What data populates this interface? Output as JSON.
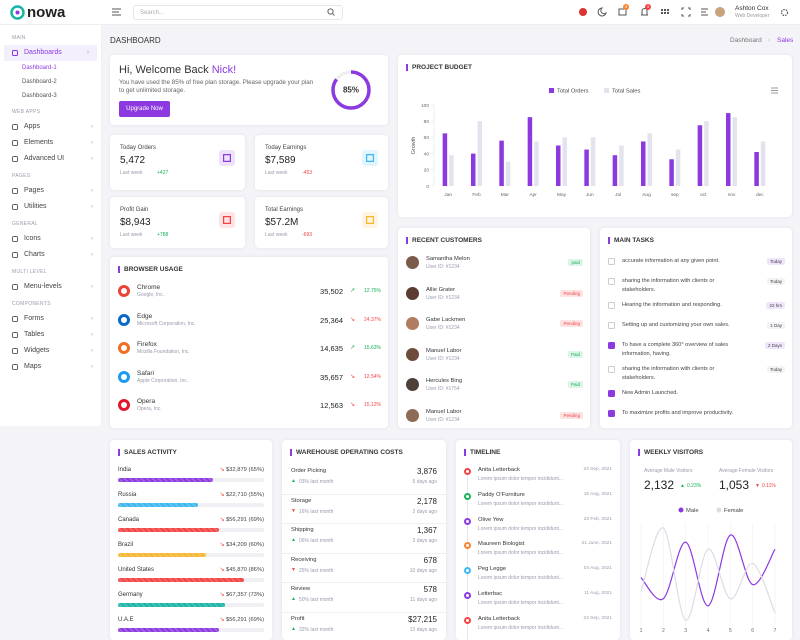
{
  "header": {
    "logo": "nowa",
    "search_placeholder": "Search...",
    "cart_badge": "5",
    "notification_badge": "3",
    "user_name": "Ashton Cox",
    "user_role": "Web Developer"
  },
  "sidebar": {
    "sections": [
      {
        "title": "MAIN",
        "items": [
          {
            "label": "Dashboards",
            "children": [
              "Dashboard-1",
              "Dashboard-2",
              "Dashboard-3"
            ]
          }
        ]
      },
      {
        "title": "WEB APPS",
        "items": [
          {
            "label": "Apps"
          },
          {
            "label": "Elements"
          },
          {
            "label": "Advanced UI"
          }
        ]
      },
      {
        "title": "PAGES",
        "items": [
          {
            "label": "Pages"
          },
          {
            "label": "Utilities"
          }
        ]
      },
      {
        "title": "GENERAL",
        "items": [
          {
            "label": "Icons"
          },
          {
            "label": "Charts"
          }
        ]
      },
      {
        "title": "MULTI LEVEL",
        "items": [
          {
            "label": "Menu-levels"
          }
        ]
      },
      {
        "title": "COMPONENTS",
        "items": [
          {
            "label": "Forms"
          },
          {
            "label": "Tables"
          },
          {
            "label": "Widgets"
          },
          {
            "label": "Maps"
          }
        ]
      }
    ]
  },
  "page": {
    "title": "DASHBOARD",
    "breadcrumb": [
      "Dashboard",
      "Sales"
    ]
  },
  "welcome": {
    "greeting": "Hi, Welcome Back ",
    "name": "Nick!",
    "text": "You have used the 85% of free plan storage. Please upgrade your plan to get unlimited storage.",
    "button": "Upgrade Now",
    "progress": {
      "value": 85,
      "label": "85%"
    }
  },
  "stats": [
    {
      "title": "Today Orders",
      "value": "5,472",
      "period": "Last week",
      "change": "+427",
      "trend": "up",
      "color": "#8c3ae0"
    },
    {
      "title": "Today Earnings",
      "value": "$7,589",
      "period": "Last week",
      "change": "-453",
      "trend": "down",
      "color": "#3cb8f0"
    },
    {
      "title": "Profit Gain",
      "value": "$8,943",
      "period": "Last week",
      "change": "+788",
      "trend": "up",
      "color": "#f34343"
    },
    {
      "title": "Total Earnings",
      "value": "$57.2M",
      "period": "Last week",
      "change": "-693",
      "trend": "down",
      "color": "#f7b731"
    }
  ],
  "project_budget": {
    "type": "bar",
    "title": "PROJECT BUDGET",
    "y_label": "Growth",
    "categories": [
      "Jan",
      "Feb",
      "Mar",
      "Apr",
      "May",
      "Jun",
      "Jul",
      "Aug",
      "sep",
      "oct",
      "nov",
      "dec"
    ],
    "series": [
      {
        "name": "Total Orders",
        "color": "#8c3ae0",
        "values": [
          65,
          40,
          56,
          85,
          50,
          45,
          38,
          55,
          33,
          75,
          90,
          42
        ]
      },
      {
        "name": "Total Sales",
        "color": "#e3e3ee",
        "values": [
          38,
          80,
          30,
          55,
          60,
          60,
          50,
          65,
          45,
          80,
          85,
          55
        ]
      }
    ],
    "ylim": [
      0,
      100
    ],
    "yticks": [
      0,
      20,
      40,
      60,
      80,
      100
    ]
  },
  "browser_usage": {
    "title": "BROWSER USAGE",
    "rows": [
      {
        "name": "Chrome",
        "company": "Google, Inc.",
        "value": "35,502",
        "change": "12.75%",
        "trend": "up",
        "color": "#ea4335"
      },
      {
        "name": "Edge",
        "company": "Microsoft Corporation, Inc.",
        "value": "25,364",
        "change": "24.37%",
        "trend": "down",
        "color": "#0a68c9"
      },
      {
        "name": "Firefox",
        "company": "Mozilla Foundation, Inc.",
        "value": "14,635",
        "change": "15,63%",
        "trend": "up",
        "color": "#f26d22"
      },
      {
        "name": "Safari",
        "company": "Apple Corporation, Inc.",
        "value": "35,657",
        "change": "12.54%",
        "trend": "down",
        "color": "#1a9bf0"
      },
      {
        "name": "Opera",
        "company": "Opera, Inc.",
        "value": "12,563",
        "change": "15.12%",
        "trend": "down",
        "color": "#e0182d"
      }
    ]
  },
  "recent_customers": {
    "title": "RECENT CUSTOMERS",
    "rows": [
      {
        "name": "Samantha Melon",
        "id": "User ID: #1234",
        "status": "paid",
        "status_type": "success"
      },
      {
        "name": "Allie Grater",
        "id": "User ID: #1234",
        "status": "Pending",
        "status_type": "danger"
      },
      {
        "name": "Gabe Lackmen",
        "id": "User ID: #1234",
        "status": "Pending",
        "status_type": "danger"
      },
      {
        "name": "Manuel Labor",
        "id": "User ID: #1234",
        "status": "Paid",
        "status_type": "success"
      },
      {
        "name": "Hercules Bing",
        "id": "User ID: #1754",
        "status": "Paid",
        "status_type": "success"
      },
      {
        "name": "Manuel Labor",
        "id": "User ID: #1234",
        "status": "Pending",
        "status_type": "danger"
      }
    ]
  },
  "main_tasks": {
    "title": "MAIN TASKS",
    "rows": [
      {
        "text": "accurate information at any given point.",
        "badge": "Today",
        "checked": false
      },
      {
        "text": "sharing the information with clients or stakeholders.",
        "badge": "Today",
        "checked": false
      },
      {
        "text": "Hearing the information and responding.",
        "badge": "22 hrs",
        "checked": false
      },
      {
        "text": "Setting up and customizing your own sales.",
        "badge": "1 Day",
        "checked": false
      },
      {
        "text": "To have a complete 360° overview of sales information, having.",
        "badge": "2 Days",
        "checked": true
      },
      {
        "text": "sharing the information with clients or stakeholders.",
        "badge": "Today",
        "checked": false
      },
      {
        "text": "New Admin Launched.",
        "checked": true
      },
      {
        "text": "To maximize profits and improve productivity.",
        "checked": true
      }
    ]
  },
  "sales_activity": {
    "title": "SALES ACTIVITY",
    "rows": [
      {
        "country": "India",
        "amount": "$32,879",
        "percent": 65,
        "percent_label": "(65%)",
        "color": "#8c3ae0"
      },
      {
        "country": "Russia",
        "amount": "$22,710",
        "percent": 55,
        "percent_label": "(55%)",
        "color": "#3cb8f0"
      },
      {
        "country": "Canada",
        "amount": "$56,291",
        "percent": 69,
        "percent_label": "(69%)",
        "color": "#f34343"
      },
      {
        "country": "Brazil",
        "amount": "$34,209",
        "percent": 60,
        "percent_label": "(60%)",
        "color": "#f7b731"
      },
      {
        "country": "United States",
        "amount": "$45,870",
        "percent": 86,
        "percent_label": "(86%)",
        "color": "#f34343"
      },
      {
        "country": "Germany",
        "amount": "$67,357",
        "percent": 73,
        "percent_label": "(73%)",
        "color": "#19b5a5"
      },
      {
        "country": "U.A.E",
        "amount": "$56,291",
        "percent": 69,
        "percent_label": "(69%)",
        "color": "#8c3ae0"
      }
    ]
  },
  "warehouse": {
    "title": "WAREHOUSE OPERATING COSTS",
    "rows": [
      {
        "label": "Order Picking",
        "value": "3,876",
        "change": "03% last month",
        "trend": "up",
        "time": "5 days ago"
      },
      {
        "label": "Storage",
        "value": "2,178",
        "change": "16% last month",
        "trend": "down",
        "time": "2 days ago"
      },
      {
        "label": "Shipping",
        "value": "1,367",
        "change": "06% last month",
        "trend": "up",
        "time": "3 days ago"
      },
      {
        "label": "Receiving",
        "value": "678",
        "change": "25% last month",
        "trend": "down",
        "time": "10 days ago"
      },
      {
        "label": "Review",
        "value": "578",
        "change": "50% last month",
        "trend": "up",
        "time": "11 days ago"
      },
      {
        "label": "Profit",
        "value": "$27,215",
        "change": "32% last month",
        "trend": "up",
        "time": "13 days ago"
      }
    ]
  },
  "timeline": {
    "title": "TIMELINE",
    "rows": [
      {
        "name": "Anita Letterback",
        "text": "Lorem ipsum dolor tempor incididunt...",
        "date": "23 Sep, 2021",
        "color": "#f34343"
      },
      {
        "name": "Paddy O'Furniture",
        "text": "Lorem ipsum dolor tempor incididunt...",
        "date": "16 Aug, 2021",
        "color": "#19b159"
      },
      {
        "name": "Olive Yew",
        "text": "Lorem ipsum dolor tempor incididunt...",
        "date": "23 Feb, 2021",
        "color": "#8c3ae0"
      },
      {
        "name": "Maureen Biologist",
        "text": "Lorem ipsum dolor tempor incididunt...",
        "date": "21 June, 2021",
        "color": "#f7842e"
      },
      {
        "name": "Peg Legge",
        "text": "Lorem ipsum dolor tempor incididunt...",
        "date": "04 Aug, 2021",
        "color": "#3cb8f0"
      },
      {
        "name": "Letterbac",
        "text": "Lorem ipsum dolor tempor incididunt...",
        "date": "11 Aug, 2021",
        "color": "#8c3ae0"
      },
      {
        "name": "Anita Letterback",
        "text": "Lorem ipsum dolor tempor incididunt...",
        "date": "23 Sep, 2021",
        "color": "#f34343"
      }
    ]
  },
  "weekly_visitors": {
    "type": "line",
    "title": "WEEKLY VISITORS",
    "male": {
      "label": "Average Male Visitors",
      "value": "2,132",
      "change": "0.23%",
      "trend": "up"
    },
    "female": {
      "label": "Average Female Visitors",
      "value": "1,053",
      "change": "0.11%",
      "trend": "down"
    },
    "x": [
      1,
      2,
      3,
      4,
      5,
      6,
      7
    ],
    "series": [
      {
        "name": "Male",
        "color": "#8c3ae0",
        "values": [
          50,
          35,
          75,
          30,
          80,
          45,
          70
        ]
      },
      {
        "name": "Female",
        "color": "#dcdce6",
        "values": [
          40,
          85,
          20,
          70,
          35,
          60,
          25
        ]
      }
    ]
  }
}
